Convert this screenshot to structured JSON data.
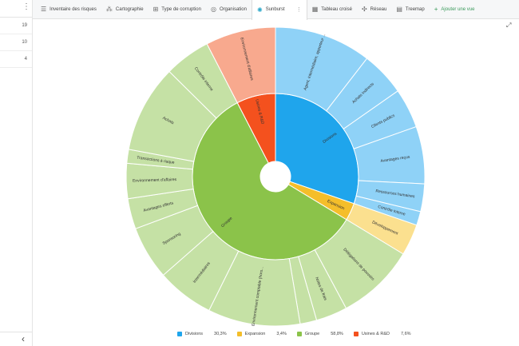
{
  "left_panel": {
    "rows": [
      "19",
      "10",
      "4"
    ]
  },
  "tabs": [
    {
      "label": "Inventaire des risques",
      "icon": "list-icon",
      "glyph": "☰",
      "active": false
    },
    {
      "label": "Cartographie",
      "icon": "scatter-icon",
      "glyph": "⁂",
      "active": false
    },
    {
      "label": "Type de corruption",
      "icon": "tree-icon",
      "glyph": "⊞",
      "active": false
    },
    {
      "label": "Organisation",
      "icon": "org-icon",
      "glyph": "◎",
      "active": false
    },
    {
      "label": "Sunburst",
      "icon": "sunburst-icon",
      "glyph": "✺",
      "active": true
    },
    {
      "label": "Tableau croisé",
      "icon": "table-icon",
      "glyph": "▦",
      "active": false
    },
    {
      "label": "Réseau",
      "icon": "network-icon",
      "glyph": "✣",
      "active": false
    },
    {
      "label": "Treemap",
      "icon": "treemap-icon",
      "glyph": "▤",
      "active": false
    },
    {
      "label": "Ajouter une vue",
      "icon": "plus-icon",
      "glyph": "+",
      "active": false
    }
  ],
  "chart_data": {
    "type": "sunburst",
    "colors": {
      "divisions_inner": "#1fa5ec",
      "divisions_outer": "#8fd2f7",
      "expansion_inner": "#f4be2a",
      "expansion_outer": "#fbe08f",
      "groupe_inner": "#8bc34a",
      "groupe_outer": "#c5e1a5",
      "usines_inner": "#f4511e",
      "usines_outer": "#f8a98e"
    },
    "inner": [
      {
        "name": "Divisions",
        "value": 30.3
      },
      {
        "name": "Expansion",
        "value": 3.4
      },
      {
        "name": "Groupe",
        "value": 58.8
      },
      {
        "name": "Usines & R&D",
        "value": 7.6
      }
    ],
    "outer": [
      {
        "parent": "Divisions",
        "name": "Agent, intermédiaire, apporteur ...",
        "value": 10.5
      },
      {
        "parent": "Divisions",
        "name": "Achats indirects",
        "value": 4.8
      },
      {
        "parent": "Divisions",
        "name": "Clients publics",
        "value": 4.3
      },
      {
        "parent": "Divisions",
        "name": "Avantages reçus",
        "value": 6.2
      },
      {
        "parent": "Divisions",
        "name": "Ressources humaines",
        "value": 3.0
      },
      {
        "parent": "Divisions",
        "name": "Contrôle interne",
        "value": 1.5
      },
      {
        "parent": "Expansion",
        "name": "Développement",
        "value": 3.4
      },
      {
        "parent": "Groupe",
        "name": "Délégations de pouvoirs",
        "value": 8.5
      },
      {
        "parent": "Groupe",
        "name": "Notes de frais",
        "value": 3.4
      },
      {
        "parent": "Groupe",
        "name": "",
        "value": 1.8
      },
      {
        "parent": "Groupe",
        "name": "Environnement comptable (hors...",
        "value": 10.0
      },
      {
        "parent": "Groupe",
        "name": "Intermédiaires",
        "value": 6.2
      },
      {
        "parent": "Groupe",
        "name": "Sponsoring",
        "value": 5.8
      },
      {
        "parent": "Groupe",
        "name": "Avantages offerts",
        "value": 3.3
      },
      {
        "parent": "Groupe",
        "name": "Environnement d'affaires",
        "value": 3.8
      },
      {
        "parent": "Groupe",
        "name": "Transactions à risque",
        "value": 1.5
      },
      {
        "parent": "Groupe",
        "name": "Achats",
        "value": 9.5
      },
      {
        "parent": "Groupe",
        "name": "Contrôle interne",
        "value": 5.0
      },
      {
        "parent": "Usines & R&D",
        "name": "Environnement d'affaires",
        "value": 7.6
      }
    ],
    "legend": [
      {
        "name": "Divisions",
        "value": "30,3%"
      },
      {
        "name": "Expansion",
        "value": "3,4%"
      },
      {
        "name": "Groupe",
        "value": "58,8%"
      },
      {
        "name": "Usines & R&D",
        "value": "7,6%"
      }
    ]
  }
}
